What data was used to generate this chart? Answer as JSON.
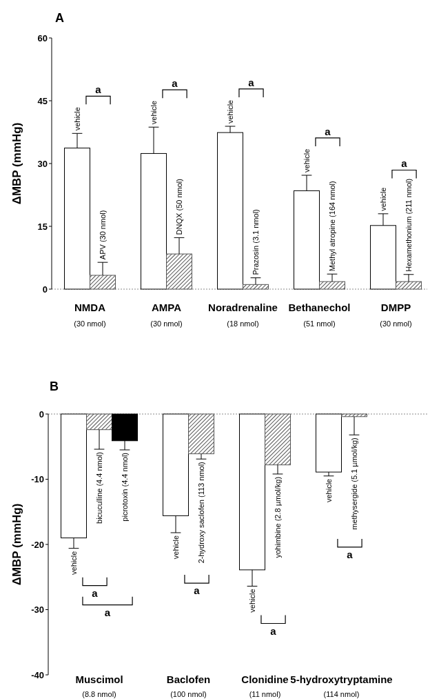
{
  "chart_data": [
    {
      "type": "bar",
      "title": "A",
      "ylabel": "ΔMBP (mmHg)",
      "ylim": [
        0,
        60
      ],
      "yticks": [
        0,
        15,
        30,
        45,
        60
      ],
      "categories": [
        "NMDA\n(30 nmol)",
        "AMPA\n(30 nmol)",
        "Noradrenaline\n(18 nmol)",
        "Bethanechol\n(51 nmol)",
        "DMPP\n(30 nmol)"
      ],
      "series": [
        {
          "name": "vehicle",
          "color": "#ffffff",
          "values": [
            33.7,
            32.4,
            37.4,
            23.5,
            15.2
          ],
          "errors": [
            [
              33.7,
              37.2
            ],
            [
              32.4,
              38.7
            ],
            [
              37.4,
              38.9
            ],
            [
              23.5,
              27.2
            ],
            [
              15.2,
              18.0
            ]
          ]
        },
        {
          "color": "#555555",
          "values": [
            3.3,
            8.4,
            1.1,
            1.8,
            1.8
          ],
          "errors": [
            [
              3.3,
              6.4
            ],
            [
              8.4,
              12.3
            ],
            [
              1.1,
              2.7
            ],
            [
              1.8,
              3.6
            ],
            [
              1.8,
              3.5
            ]
          ]
        }
      ],
      "annotations": [
        "APV (30 nmol)",
        "DNQX (50 nmol)",
        "Prazosin (3.1 nmol)",
        "Methyl atropine (164 nmol)",
        "Hexamethonium (211 nmol)",
        "a",
        "a",
        "a",
        "a",
        "a"
      ]
    },
    {
      "type": "bar",
      "title": "B",
      "ylabel": "ΔMBP (mmHg)",
      "ylim": [
        -40,
        0
      ],
      "yticks": [
        -40,
        -30,
        -20,
        -10,
        0
      ],
      "categories": [
        "Muscimol\n(8.8 nmol)",
        "Baclofen\n(100 nmol)",
        "Clonidine\n(11 nmol)",
        "5-hydroxytryptamine\n(114 nmol)"
      ],
      "series": [
        {
          "name": "vehicle",
          "color": "#ffffff",
          "values": [
            -19.0,
            -15.6,
            -23.9,
            -8.9
          ],
          "errors": [
            [
              -20.6,
              -19.0
            ],
            [
              -18.2,
              -15.6
            ],
            [
              -26.4,
              -23.9
            ],
            [
              -9.5,
              -8.9
            ]
          ]
        },
        {
          "color": "#555555",
          "values": [
            -2.4,
            -6.1,
            -7.8,
            -0.4
          ],
          "errors": [
            [
              -5.4,
              -2.4
            ],
            [
              -6.9,
              -6.1
            ],
            [
              -9.2,
              -7.8
            ],
            [
              -3.2,
              -0.4
            ]
          ]
        },
        {
          "color": "#000000",
          "values": [
            -4.1,
            null,
            null,
            null
          ],
          "errors": [
            [
              -5.5,
              -4.1
            ],
            null,
            null,
            null
          ]
        }
      ],
      "annotations": [
        "bicuculline (4.4 nmol)",
        "picrotoxin (4.4 nmol)",
        "2-hydroxy saclofen (113 nmol)",
        "yohimbine (2.8 µmol/kg)",
        "methysergide (5.1 µmol/kg)",
        "a",
        "a",
        "a",
        "a",
        "a"
      ]
    }
  ]
}
